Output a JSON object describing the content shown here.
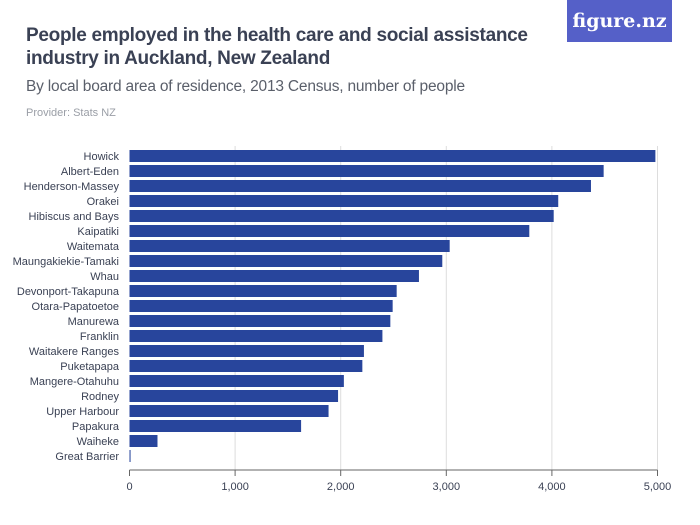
{
  "title": "People employed in the health care and social assistance industry in Auckland, New Zealand",
  "subtitle": "By local board area of residence, 2013 Census, number of people",
  "provider": "Provider: Stats NZ",
  "logo": "figure.nz",
  "colors": {
    "bar": "#28459c",
    "logo_bg": "#5560c8",
    "grid": "#dddddd"
  },
  "chart_data": {
    "type": "bar",
    "orientation": "horizontal",
    "categories": [
      "Howick",
      "Albert-Eden",
      "Henderson-Massey",
      "Orakei",
      "Hibiscus and Bays",
      "Kaipatiki",
      "Waitemata",
      "Maungakiekie-Tamaki",
      "Whau",
      "Devonport-Takapuna",
      "Otara-Papatoetoe",
      "Manurewa",
      "Franklin",
      "Waitakere Ranges",
      "Puketapapa",
      "Mangere-Otahuhu",
      "Rodney",
      "Upper Harbour",
      "Papakura",
      "Waiheke",
      "Great Barrier"
    ],
    "values": [
      4980,
      4490,
      4370,
      4060,
      4017,
      3786,
      3032,
      2962,
      2741,
      2530,
      2492,
      2470,
      2395,
      2220,
      2205,
      2030,
      1975,
      1885,
      1625,
      265,
      10
    ],
    "xlim": [
      0,
      5000
    ],
    "xticks": [
      0,
      1000,
      2000,
      3000,
      4000,
      5000
    ],
    "xtick_labels": [
      "0",
      "1,000",
      "2,000",
      "3,000",
      "4,000",
      "5,000"
    ],
    "grid": true
  }
}
